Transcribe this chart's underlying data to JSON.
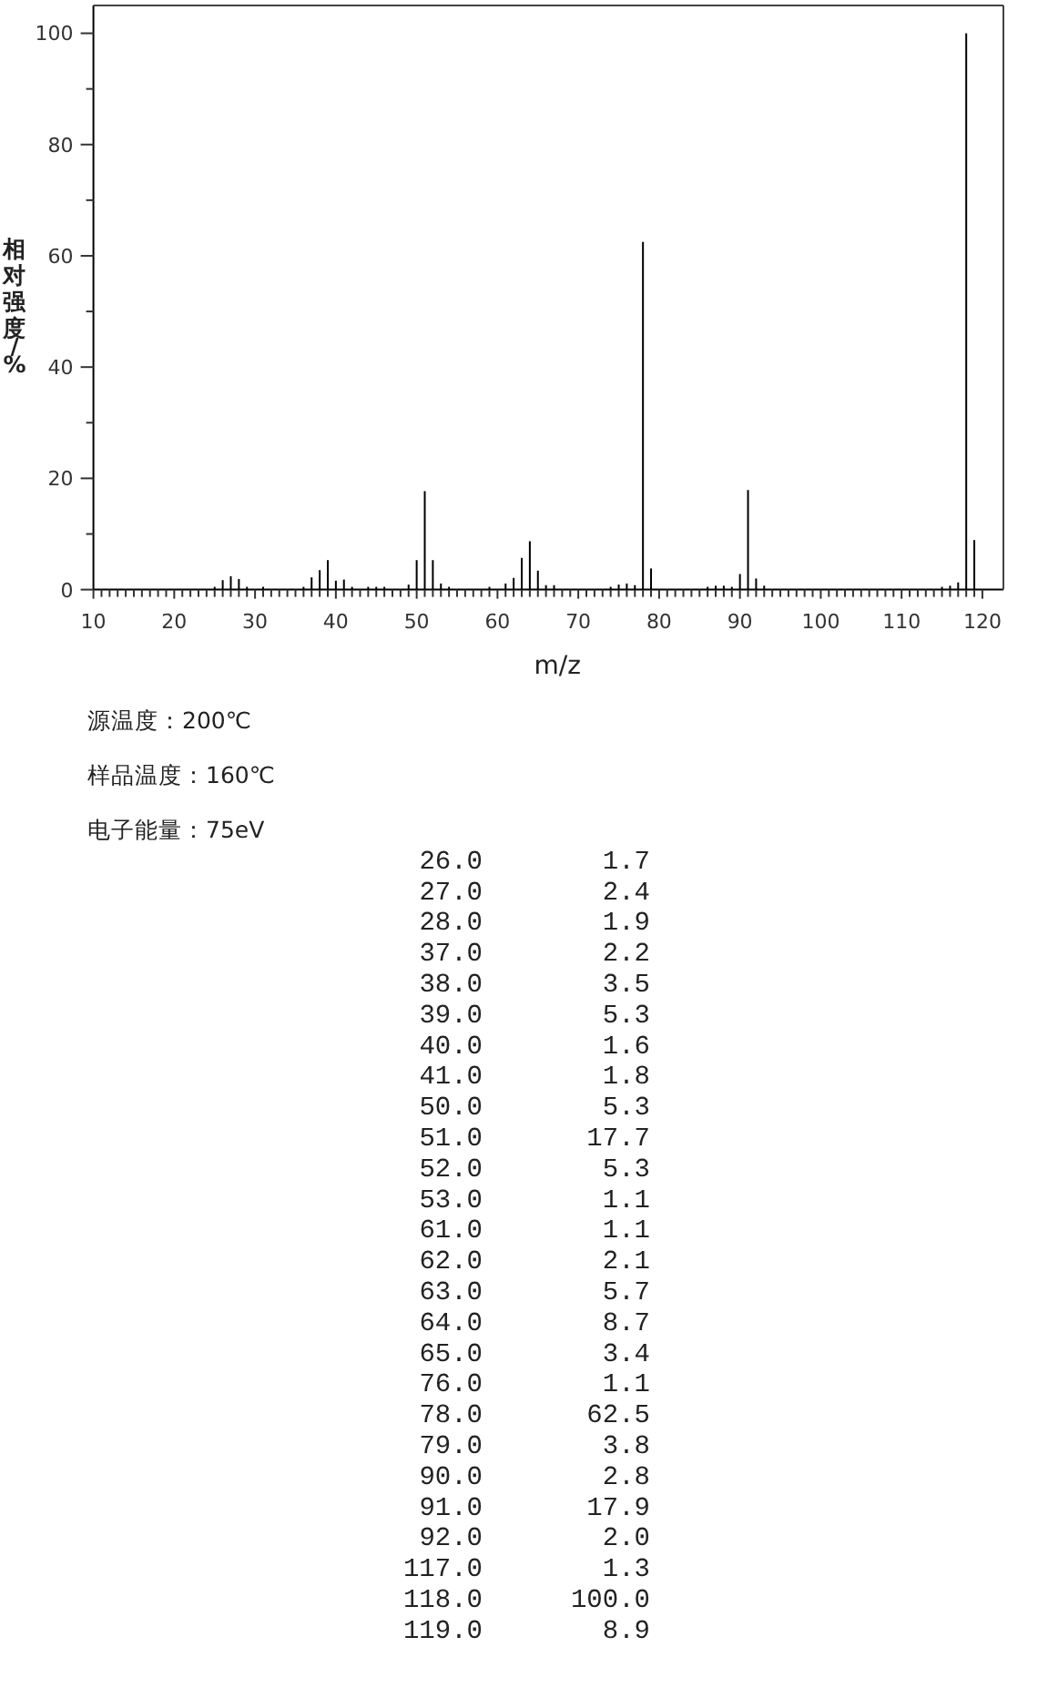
{
  "chart_data": {
    "type": "bar",
    "color": "#000000",
    "xlabel": "m/z",
    "ylabel": "相对强度/%",
    "x": [
      25,
      26,
      27,
      28,
      29,
      31,
      36,
      37,
      38,
      39,
      40,
      41,
      42,
      44,
      45,
      46,
      49,
      50,
      51,
      52,
      53,
      54,
      59,
      61,
      62,
      63,
      64,
      65,
      66,
      67,
      74,
      75,
      76,
      77,
      78,
      79,
      86,
      87,
      88,
      89,
      90,
      91,
      92,
      93,
      115,
      116,
      117,
      118,
      119
    ],
    "values": [
      0.5,
      1.7,
      2.4,
      1.9,
      0.5,
      0.5,
      0.5,
      2.2,
      3.5,
      5.3,
      1.6,
      1.8,
      0.5,
      0.5,
      0.5,
      0.5,
      0.9,
      5.3,
      17.7,
      5.3,
      1.1,
      0.5,
      0.5,
      1.1,
      2.1,
      5.7,
      8.7,
      3.4,
      0.8,
      0.8,
      0.5,
      0.9,
      1.1,
      0.8,
      62.5,
      3.8,
      0.5,
      0.7,
      0.7,
      0.5,
      2.8,
      17.9,
      2.0,
      0.7,
      0.5,
      0.7,
      1.3,
      100.0,
      8.9
    ],
    "xlim": [
      10,
      122.6
    ],
    "ylim": [
      0,
      105
    ],
    "xticks": [
      10,
      {
        "value": 11,
        "label": null
      },
      {
        "value": 12,
        "label": null
      },
      {
        "value": 13,
        "label": null
      },
      {
        "value": 14,
        "label": null
      },
      {
        "value": 15,
        "label": null
      },
      {
        "value": 16,
        "label": null
      },
      {
        "value": 17,
        "label": null
      },
      {
        "value": 18,
        "label": null
      },
      {
        "value": 19,
        "label": null
      },
      20,
      {
        "value": 21,
        "label": null
      },
      {
        "value": 22,
        "label": null
      },
      {
        "value": 23,
        "label": null
      },
      {
        "value": 24,
        "label": null
      },
      {
        "value": 25,
        "label": null
      },
      {
        "value": 26,
        "label": null
      },
      {
        "value": 27,
        "label": null
      },
      {
        "value": 28,
        "label": null
      },
      {
        "value": 29,
        "label": null
      },
      30,
      {
        "value": 31,
        "label": null
      },
      {
        "value": 32,
        "label": null
      },
      {
        "value": 33,
        "label": null
      },
      {
        "value": 34,
        "label": null
      },
      {
        "value": 35,
        "label": null
      },
      {
        "value": 36,
        "label": null
      },
      {
        "value": 37,
        "label": null
      },
      {
        "value": 38,
        "label": null
      },
      {
        "value": 39,
        "label": null
      },
      40,
      {
        "value": 41,
        "label": null
      },
      {
        "value": 42,
        "label": null
      },
      {
        "value": 43,
        "label": null
      },
      {
        "value": 44,
        "label": null
      },
      {
        "value": 45,
        "label": null
      },
      {
        "value": 46,
        "label": null
      },
      {
        "value": 47,
        "label": null
      },
      {
        "value": 48,
        "label": null
      },
      {
        "value": 49,
        "label": null
      },
      50,
      {
        "value": 51,
        "label": null
      },
      {
        "value": 52,
        "label": null
      },
      {
        "value": 53,
        "label": null
      },
      {
        "value": 54,
        "label": null
      },
      {
        "value": 55,
        "label": null
      },
      {
        "value": 56,
        "label": null
      },
      {
        "value": 57,
        "label": null
      },
      {
        "value": 58,
        "label": null
      },
      {
        "value": 59,
        "label": null
      },
      60,
      {
        "value": 61,
        "label": null
      },
      {
        "value": 62,
        "label": null
      },
      {
        "value": 63,
        "label": null
      },
      {
        "value": 64,
        "label": null
      },
      {
        "value": 65,
        "label": null
      },
      {
        "value": 66,
        "label": null
      },
      {
        "value": 67,
        "label": null
      },
      {
        "value": 68,
        "label": null
      },
      {
        "value": 69,
        "label": null
      },
      70,
      {
        "value": 71,
        "label": null
      },
      {
        "value": 72,
        "label": null
      },
      {
        "value": 73,
        "label": null
      },
      {
        "value": 74,
        "label": null
      },
      {
        "value": 75,
        "label": null
      },
      {
        "value": 76,
        "label": null
      },
      {
        "value": 77,
        "label": null
      },
      {
        "value": 78,
        "label": null
      },
      {
        "value": 79,
        "label": null
      },
      80,
      {
        "value": 81,
        "label": null
      },
      {
        "value": 82,
        "label": null
      },
      {
        "value": 83,
        "label": null
      },
      {
        "value": 84,
        "label": null
      },
      {
        "value": 85,
        "label": null
      },
      {
        "value": 86,
        "label": null
      },
      {
        "value": 87,
        "label": null
      },
      {
        "value": 88,
        "label": null
      },
      {
        "value": 89,
        "label": null
      },
      90,
      {
        "value": 91,
        "label": null
      },
      {
        "value": 92,
        "label": null
      },
      {
        "value": 93,
        "label": null
      },
      {
        "value": 94,
        "label": null
      },
      {
        "value": 95,
        "label": null
      },
      {
        "value": 96,
        "label": null
      },
      {
        "value": 97,
        "label": null
      },
      {
        "value": 98,
        "label": null
      },
      {
        "value": 99,
        "label": null
      },
      100,
      {
        "value": 101,
        "label": null
      },
      {
        "value": 102,
        "label": null
      },
      {
        "value": 103,
        "label": null
      },
      {
        "value": 104,
        "label": null
      },
      {
        "value": 105,
        "label": null
      },
      {
        "value": 106,
        "label": null
      },
      {
        "value": 107,
        "label": null
      },
      {
        "value": 108,
        "label": null
      },
      {
        "value": 109,
        "label": null
      },
      110,
      {
        "value": 111,
        "label": null
      },
      {
        "value": 112,
        "label": null
      },
      {
        "value": 113,
        "label": null
      },
      {
        "value": 114,
        "label": null
      },
      {
        "value": 115,
        "label": null
      },
      {
        "value": 116,
        "label": null
      },
      {
        "value": 117,
        "label": null
      },
      {
        "value": 118,
        "label": null
      },
      {
        "value": 119,
        "label": null
      },
      120
    ],
    "yticks": [
      0,
      {
        "value": 10,
        "label": null
      },
      20,
      {
        "value": 30,
        "label": null
      },
      40,
      {
        "value": 50,
        "label": null
      },
      60,
      {
        "value": 70,
        "label": null
      },
      80,
      {
        "value": 90,
        "label": null
      },
      100
    ],
    "annotations": [
      "源温度：200℃",
      "样品温度：160℃",
      "电子能量：75eV",
      "26.0 1.7",
      "27.0 2.4",
      "28.0 1.9",
      "37.0 2.2",
      "38.0 3.5",
      "39.0 5.3",
      "40.0 1.6",
      "41.0 1.8",
      "50.0 5.3",
      "51.0 17.7",
      "52.0 5.3",
      "53.0 1.1",
      "61.0 1.1",
      "62.0 2.1",
      "63.0 5.7",
      "64.0 8.7",
      "65.0 3.4",
      "76.0 1.1",
      "78.0 62.5",
      "79.0 3.8",
      "90.0 2.8",
      "91.0 17.9",
      "92.0 2.0",
      "117.0 1.3",
      "118.0 100.0",
      "119.0 8.9"
    ]
  }
}
